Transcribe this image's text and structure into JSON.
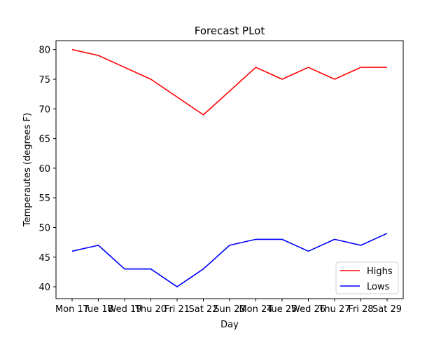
{
  "chart_data": {
    "type": "line",
    "title": "Forecast PLot",
    "xlabel": "Day",
    "ylabel": "Temperautes (degrees F)",
    "categories": [
      "Mon 17",
      "Tue 18",
      "Wed 19",
      "Thu 20",
      "Fri 21",
      "Sat 22",
      "Sun 23",
      "Mon 24",
      "Tue 25",
      "Wed 26",
      "Thu 27",
      "Fri 28",
      "Sat 29"
    ],
    "series": [
      {
        "name": "Highs",
        "color": "#ff0000",
        "values": [
          80,
          79,
          77,
          75,
          72,
          69,
          73,
          77,
          75,
          77,
          75,
          77,
          77
        ]
      },
      {
        "name": "Lows",
        "color": "#0000ff",
        "values": [
          46,
          47,
          43,
          43,
          40,
          43,
          47,
          48,
          48,
          46,
          48,
          47,
          49
        ]
      }
    ],
    "ylim": [
      38,
      81.5
    ],
    "yticks": [
      40,
      45,
      50,
      55,
      60,
      65,
      70,
      75,
      80
    ],
    "grid": false,
    "legend_position": "lower-right"
  }
}
